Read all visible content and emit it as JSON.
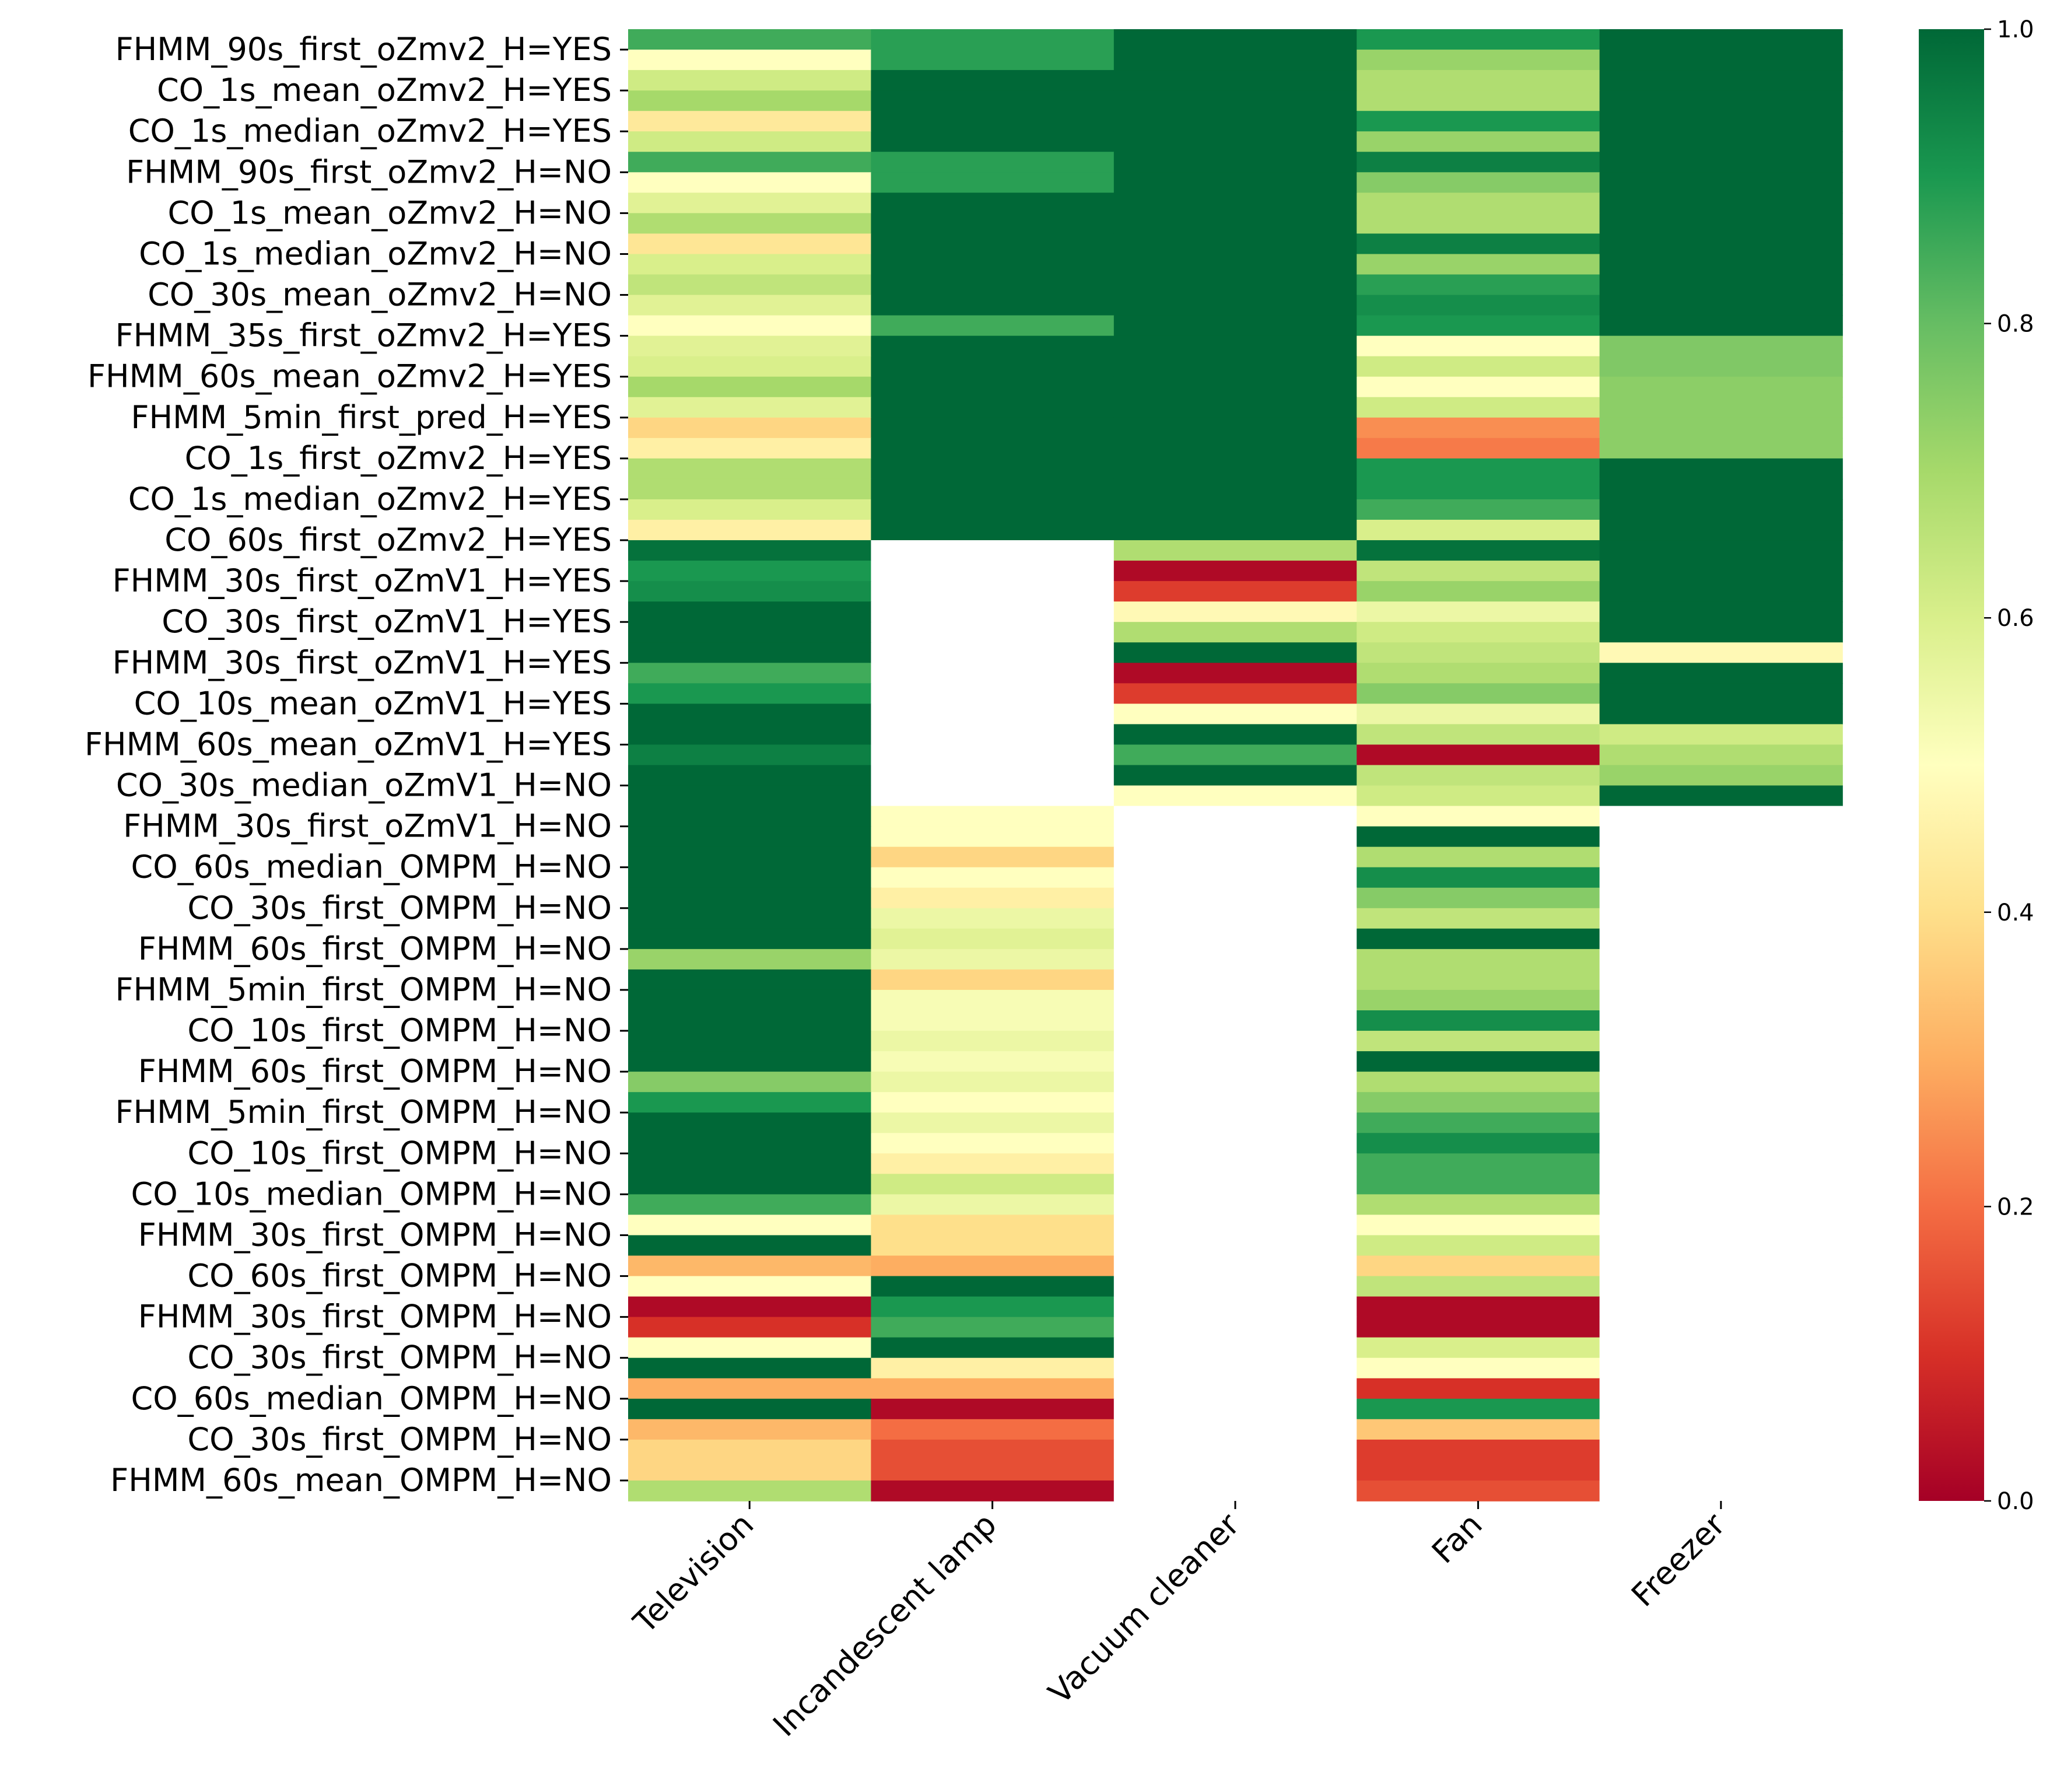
{
  "chart_data": {
    "type": "heatmap",
    "title": "",
    "xlabel": "",
    "ylabel": "",
    "columns": [
      "Television",
      "Incandescent lamp",
      "Vacuum cleaner",
      "Fan",
      "Freezer"
    ],
    "row_labels": [
      "FHMM_90s_first_oZmv2_H=YES",
      "CO_1s_mean_oZmv2_H=YES",
      "CO_1s_median_oZmv2_H=YES",
      "FHMM_90s_first_oZmv2_H=NO",
      "CO_1s_mean_oZmv2_H=NO",
      "CO_1s_median_oZmv2_H=NO",
      "CO_30s_mean_oZmv2_H=NO",
      "FHMM_35s_first_oZmv2_H=YES",
      "FHMM_60s_mean_oZmv2_H=YES",
      "FHMM_5min_first_pred_H=YES",
      "CO_1s_first_oZmv2_H=YES",
      "CO_1s_median_oZmv2_H=YES",
      "CO_60s_first_oZmv2_H=YES",
      "FHMM_30s_first_oZmV1_H=YES",
      "CO_30s_first_oZmV1_H=YES",
      "FHMM_30s_first_oZmV1_H=YES",
      "CO_10s_mean_oZmV1_H=YES",
      "FHMM_60s_mean_oZmV1_H=YES",
      "CO_30s_median_oZmV1_H=NO",
      "FHMM_30s_first_oZmV1_H=NO",
      "CO_60s_median_OMPM_H=NO",
      "CO_30s_first_OMPM_H=NO",
      "FHMM_60s_first_OMPM_H=NO",
      "FHMM_5min_first_OMPM_H=NO",
      "CO_10s_first_OMPM_H=NO",
      "FHMM_60s_first_OMPM_H=NO",
      "FHMM_5min_first_OMPM_H=NO",
      "CO_10s_first_OMPM_H=NO",
      "CO_10s_median_OMPM_H=NO",
      "FHMM_30s_first_OMPM_H=NO",
      "CO_60s_first_OMPM_H=NO",
      "FHMM_30s_first_OMPM_H=NO",
      "CO_30s_first_OMPM_H=NO",
      "CO_60s_median_OMPM_H=NO",
      "CO_30s_first_OMPM_H=NO",
      "FHMM_60s_mean_OMPM_H=NO"
    ],
    "n_rows": 72,
    "values": [
      [
        0.85,
        0.88,
        1.0,
        0.9,
        1.0
      ],
      [
        0.5,
        0.88,
        1.0,
        0.72,
        1.0
      ],
      [
        0.62,
        1.0,
        1.0,
        0.68,
        1.0
      ],
      [
        0.7,
        1.0,
        1.0,
        0.68,
        1.0
      ],
      [
        0.43,
        1.0,
        1.0,
        0.9,
        1.0
      ],
      [
        0.62,
        1.0,
        1.0,
        0.72,
        1.0
      ],
      [
        0.85,
        0.88,
        1.0,
        0.95,
        1.0
      ],
      [
        0.5,
        0.88,
        1.0,
        0.75,
        1.0
      ],
      [
        0.58,
        1.0,
        1.0,
        0.68,
        1.0
      ],
      [
        0.68,
        1.0,
        1.0,
        0.68,
        1.0
      ],
      [
        0.42,
        1.0,
        1.0,
        0.95,
        1.0
      ],
      [
        0.6,
        1.0,
        1.0,
        0.72,
        1.0
      ],
      [
        0.65,
        1.0,
        1.0,
        0.88,
        1.0
      ],
      [
        0.58,
        1.0,
        1.0,
        0.92,
        1.0
      ],
      [
        0.5,
        0.85,
        1.0,
        0.9,
        1.0
      ],
      [
        0.58,
        1.0,
        1.0,
        0.5,
        0.76
      ],
      [
        0.6,
        1.0,
        1.0,
        0.62,
        0.76
      ],
      [
        0.7,
        1.0,
        1.0,
        0.5,
        0.74
      ],
      [
        0.58,
        1.0,
        1.0,
        0.62,
        0.74
      ],
      [
        0.38,
        1.0,
        1.0,
        0.25,
        0.74
      ],
      [
        0.45,
        1.0,
        1.0,
        0.22,
        0.74
      ],
      [
        0.68,
        1.0,
        1.0,
        0.9,
        1.0
      ],
      [
        0.68,
        1.0,
        1.0,
        0.9,
        1.0
      ],
      [
        0.6,
        1.0,
        1.0,
        0.85,
        1.0
      ],
      [
        0.45,
        1.0,
        1.0,
        0.6,
        1.0
      ],
      [
        0.98,
        null,
        0.68,
        0.98,
        1.0
      ],
      [
        0.9,
        null,
        0.02,
        0.65,
        1.0
      ],
      [
        0.92,
        null,
        0.12,
        0.72,
        1.0
      ],
      [
        1.0,
        null,
        0.48,
        0.55,
        1.0
      ],
      [
        1.0,
        null,
        0.68,
        0.62,
        1.0
      ],
      [
        1.0,
        null,
        1.0,
        0.65,
        0.48
      ],
      [
        0.85,
        null,
        0.02,
        0.68,
        1.0
      ],
      [
        0.9,
        null,
        0.12,
        0.75,
        1.0
      ],
      [
        1.0,
        null,
        0.5,
        0.55,
        1.0
      ],
      [
        1.0,
        null,
        1.0,
        0.65,
        0.62
      ],
      [
        0.95,
        null,
        0.85,
        0.02,
        0.68
      ],
      [
        1.0,
        null,
        1.0,
        0.65,
        0.72
      ],
      [
        1.0,
        null,
        0.5,
        0.62,
        1.0
      ],
      [
        1.0,
        0.5,
        null,
        0.5,
        null
      ],
      [
        1.0,
        0.5,
        null,
        1.0,
        null
      ],
      [
        1.0,
        0.38,
        null,
        0.68,
        null
      ],
      [
        1.0,
        0.5,
        null,
        0.92,
        null
      ],
      [
        1.0,
        0.45,
        null,
        0.75,
        null
      ],
      [
        1.0,
        0.55,
        null,
        0.65,
        null
      ],
      [
        1.0,
        0.58,
        null,
        1.0,
        null
      ],
      [
        0.72,
        0.55,
        null,
        0.68,
        null
      ],
      [
        1.0,
        0.38,
        null,
        0.68,
        null
      ],
      [
        1.0,
        0.52,
        null,
        0.72,
        null
      ],
      [
        1.0,
        0.52,
        null,
        0.92,
        null
      ],
      [
        1.0,
        0.55,
        null,
        0.65,
        null
      ],
      [
        1.0,
        0.52,
        null,
        1.0,
        null
      ],
      [
        0.75,
        0.55,
        null,
        0.68,
        null
      ],
      [
        0.9,
        0.5,
        null,
        0.75,
        null
      ],
      [
        1.0,
        0.55,
        null,
        0.85,
        null
      ],
      [
        1.0,
        0.5,
        null,
        0.92,
        null
      ],
      [
        1.0,
        0.45,
        null,
        0.85,
        null
      ],
      [
        1.0,
        0.62,
        null,
        0.85,
        null
      ],
      [
        0.85,
        0.55,
        null,
        0.68,
        null
      ],
      [
        0.5,
        0.4,
        null,
        0.5,
        null
      ],
      [
        1.0,
        0.4,
        null,
        0.62,
        null
      ],
      [
        0.32,
        0.3,
        null,
        0.38,
        null
      ],
      [
        0.5,
        1.0,
        null,
        0.65,
        null
      ],
      [
        0.02,
        0.9,
        null,
        0.02,
        null
      ],
      [
        0.1,
        0.85,
        null,
        0.02,
        null
      ],
      [
        0.5,
        1.0,
        null,
        0.6,
        null
      ],
      [
        1.0,
        0.45,
        null,
        0.5,
        null
      ],
      [
        0.3,
        0.3,
        null,
        0.1,
        null
      ],
      [
        1.0,
        0.02,
        null,
        0.9,
        null
      ],
      [
        0.32,
        0.2,
        null,
        0.35,
        null
      ],
      [
        0.38,
        0.15,
        null,
        0.12,
        null
      ],
      [
        0.38,
        0.15,
        null,
        0.12,
        null
      ],
      [
        0.68,
        0.02,
        null,
        0.15,
        null
      ]
    ],
    "vmin": 0.0,
    "vmax": 1.0,
    "colormap": "RdYlGn",
    "colorbar_ticks": [
      "0.0",
      "0.2",
      "0.4",
      "0.6",
      "0.8",
      "1.0"
    ],
    "colorbar_tick_values": [
      0.0,
      0.2,
      0.4,
      0.6,
      0.8,
      1.0
    ],
    "missing_color": "#ffffff",
    "colormap_stops": [
      "#a50026",
      "#d73027",
      "#f46d43",
      "#fdae61",
      "#fee08b",
      "#ffffbf",
      "#d9ef8b",
      "#a6d96a",
      "#66bd63",
      "#1a9850",
      "#006837"
    ]
  }
}
